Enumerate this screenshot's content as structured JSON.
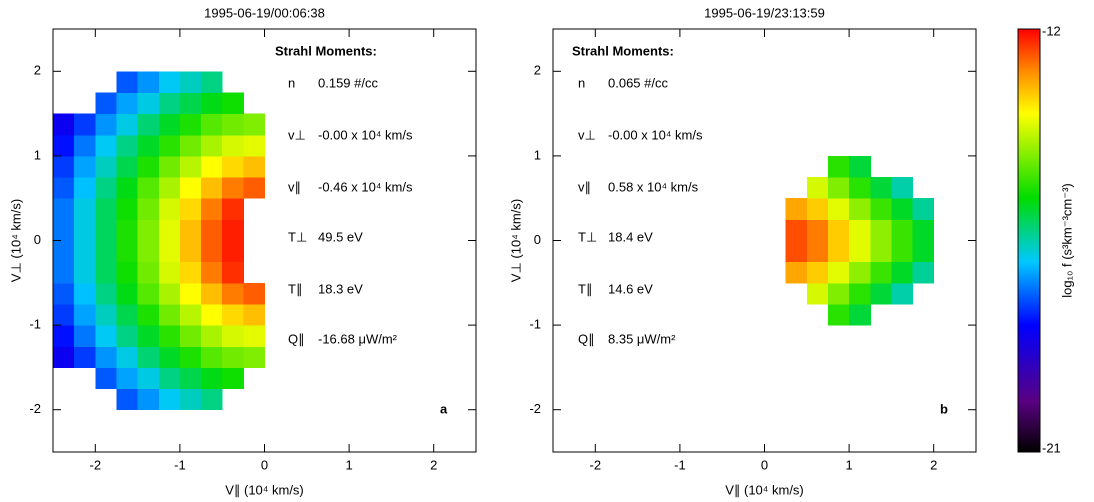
{
  "chart_data": [
    {
      "type": "heatmap",
      "title": "1995-06-19/00:06:38",
      "label": "a",
      "xlabel": "V∥ (10⁴ km/s)",
      "ylabel": "V⊥ (10⁴ km/s)",
      "xlim": [
        -2.5,
        2.5
      ],
      "ylim": [
        -2.5,
        2.5
      ],
      "xticks": [
        -2,
        -1,
        0,
        1,
        2
      ],
      "yticks": [
        -2,
        -1,
        0,
        1,
        2
      ],
      "x_edges": [
        -2.5,
        -2.25,
        -2,
        -1.75,
        -1.5,
        -1.25,
        -1,
        -0.75,
        -0.5,
        -0.25,
        0
      ],
      "y_edges": [
        -2,
        -1.75,
        -1.5,
        -1.25,
        -1,
        -0.75,
        -0.5,
        -0.25,
        0,
        0.25,
        0.5,
        0.75,
        1,
        1.25,
        1.5,
        1.75,
        2
      ],
      "values": [
        [
          null,
          null,
          null,
          -17.7,
          -17.3,
          -16.9,
          -16.6,
          -16.3,
          null,
          null
        ],
        [
          null,
          null,
          -17.7,
          -17.2,
          -16.8,
          -16.3,
          -16.0,
          -15.7,
          -15.5,
          null
        ],
        [
          -18.5,
          -17.9,
          -17.3,
          -16.8,
          -16.2,
          -15.8,
          -15.4,
          -15.0,
          -14.8,
          -14.7
        ],
        [
          -18.2,
          -17.5,
          -16.9,
          -16.3,
          -15.8,
          -15.3,
          -14.8,
          -14.4,
          -14.1,
          -14.0
        ],
        [
          -17.9,
          -17.2,
          -16.6,
          -16.0,
          -15.4,
          -14.8,
          -14.3,
          -13.8,
          -13.5,
          -13.3
        ],
        [
          -17.7,
          -17.0,
          -16.3,
          -15.7,
          -15.0,
          -14.4,
          -13.8,
          -13.3,
          -12.8,
          -12.6
        ],
        [
          -17.5,
          -16.8,
          -16.1,
          -15.5,
          -14.8,
          -14.1,
          -13.5,
          -12.8,
          -12.3,
          null
        ],
        [
          -17.5,
          -16.8,
          -16.1,
          -15.4,
          -14.7,
          -14.0,
          -13.3,
          -12.6,
          -12.2,
          null
        ],
        [
          -17.5,
          -16.8,
          -16.1,
          -15.4,
          -14.7,
          -14.0,
          -13.3,
          -12.6,
          -12.2,
          null
        ],
        [
          -17.5,
          -16.8,
          -16.1,
          -15.5,
          -14.8,
          -14.1,
          -13.5,
          -12.8,
          -12.3,
          null
        ],
        [
          -17.7,
          -17.0,
          -16.3,
          -15.7,
          -15.0,
          -14.4,
          -13.8,
          -13.3,
          -12.8,
          -12.6
        ],
        [
          -17.9,
          -17.2,
          -16.6,
          -16.0,
          -15.4,
          -14.8,
          -14.3,
          -13.8,
          -13.5,
          -13.3
        ],
        [
          -18.2,
          -17.5,
          -16.9,
          -16.3,
          -15.8,
          -15.3,
          -14.8,
          -14.4,
          -14.1,
          -14.0
        ],
        [
          -18.5,
          -17.9,
          -17.3,
          -16.8,
          -16.2,
          -15.8,
          -15.4,
          -15.0,
          -14.8,
          -14.7
        ],
        [
          null,
          null,
          -17.7,
          -17.2,
          -16.8,
          -16.3,
          -16.0,
          -15.7,
          -15.5,
          null
        ],
        [
          null,
          null,
          null,
          -17.7,
          -17.3,
          -16.9,
          -16.6,
          -16.3,
          null,
          null
        ]
      ],
      "moments": {
        "heading": "Strahl Moments:",
        "rows": [
          {
            "label": "n",
            "value": "0.159 #/cc"
          },
          {
            "label": "v⊥",
            "value": "-0.00 x 10⁴ km/s"
          },
          {
            "label": "v∥",
            "value": "-0.46 x 10⁴ km/s"
          },
          {
            "label": "T⊥",
            "value": "49.5 eV"
          },
          {
            "label": "T∥",
            "value": "18.3 eV"
          },
          {
            "label": "Q∥",
            "value": "-16.68 μW/m²"
          }
        ]
      }
    },
    {
      "type": "heatmap",
      "title": "1995-06-19/23:13:59",
      "label": "b",
      "xlabel": "V∥ (10⁴ km/s)",
      "ylabel": "V⊥ (10⁴ km/s)",
      "xlim": [
        -2.5,
        2.5
      ],
      "ylim": [
        -2.5,
        2.5
      ],
      "xticks": [
        -2,
        -1,
        0,
        1,
        2
      ],
      "yticks": [
        -2,
        -1,
        0,
        1,
        2
      ],
      "x_edges": [
        0.25,
        0.5,
        0.75,
        1,
        1.25,
        1.5,
        1.75,
        2
      ],
      "y_edges": [
        -1,
        -0.75,
        -0.5,
        -0.25,
        0,
        0.25,
        0.5,
        0.75,
        1
      ],
      "values": [
        [
          null,
          null,
          -15.3,
          -15.9,
          null,
          null,
          null
        ],
        [
          null,
          -14.1,
          -14.7,
          -15.3,
          -15.9,
          -16.5,
          null
        ],
        [
          -13.1,
          -13.4,
          -14.0,
          -14.6,
          -15.2,
          -15.8,
          -16.4
        ],
        [
          -12.5,
          -12.8,
          -13.4,
          -14.0,
          -14.6,
          -15.2,
          -15.8
        ],
        [
          -12.5,
          -12.8,
          -13.4,
          -14.0,
          -14.6,
          -15.2,
          -15.8
        ],
        [
          -13.1,
          -13.4,
          -14.0,
          -14.6,
          -15.2,
          -15.8,
          -16.4
        ],
        [
          null,
          -14.1,
          -14.7,
          -15.3,
          -15.9,
          -16.5,
          null
        ],
        [
          null,
          null,
          -15.3,
          -15.9,
          null,
          null,
          null
        ]
      ],
      "moments": {
        "heading": "Strahl Moments:",
        "rows": [
          {
            "label": "n",
            "value": "0.065 #/cc"
          },
          {
            "label": "v⊥",
            "value": "-0.00 x 10⁴ km/s"
          },
          {
            "label": "v∥",
            "value": "0.58 x 10⁴ km/s"
          },
          {
            "label": "T⊥",
            "value": "18.4 eV"
          },
          {
            "label": "T∥",
            "value": "14.6 eV"
          },
          {
            "label": "Q∥",
            "value": "8.35 μW/m²"
          }
        ]
      }
    },
    {
      "type": "colorbar",
      "label": "log₁₀ f (s³km⁻³cm⁻³)",
      "zlim": [
        -21,
        -12
      ],
      "ticks": [
        -12,
        -21
      ]
    }
  ]
}
